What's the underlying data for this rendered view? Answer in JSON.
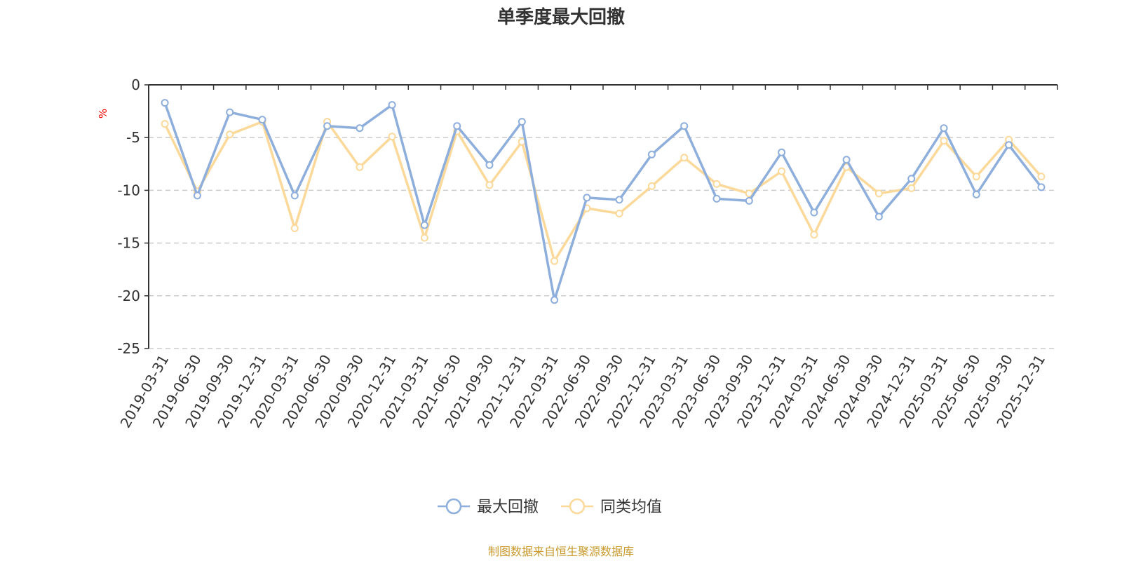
{
  "chart_data": {
    "type": "line",
    "title": "单季度最大回撤",
    "ylabel": "%",
    "ylim": [
      -25,
      0
    ],
    "yticks": [
      0,
      -5,
      -10,
      -15,
      -20,
      -25
    ],
    "grid": "horizontal dashed",
    "legend_position": "bottom-center",
    "categories": [
      "2019-03-31",
      "2019-06-30",
      "2019-09-30",
      "2019-12-31",
      "2020-03-31",
      "2020-06-30",
      "2020-09-30",
      "2020-12-31",
      "2021-03-31",
      "2021-06-30",
      "2021-09-30",
      "2021-12-31",
      "2022-03-31",
      "2022-06-30",
      "2022-09-30",
      "2022-12-31",
      "2023-03-31",
      "2023-06-30",
      "2023-09-30",
      "2023-12-31",
      "2024-03-31",
      "2024-06-30",
      "2024-09-30",
      "2024-12-31",
      "2025-03-31",
      "2025-06-30",
      "2025-09-30",
      "2025-12-31"
    ],
    "series": [
      {
        "name": "最大回撤",
        "color": "#8eaedc",
        "values": [
          -1.7,
          -10.5,
          -2.6,
          -3.3,
          -10.5,
          -3.9,
          -4.1,
          -1.9,
          -13.3,
          -3.9,
          -7.6,
          -3.5,
          -20.4,
          -10.7,
          -10.9,
          -6.6,
          -3.9,
          -10.8,
          -11.0,
          -6.4,
          -12.1,
          -7.1,
          -12.5,
          -8.9,
          -4.1,
          -10.4,
          -5.7,
          -9.7
        ]
      },
      {
        "name": "同类均值",
        "color": "#fbd99a",
        "values": [
          -3.7,
          -10.1,
          -4.7,
          -3.5,
          -13.6,
          -3.5,
          -7.8,
          -4.9,
          -14.5,
          -4.4,
          -9.5,
          -5.4,
          -16.7,
          -11.7,
          -12.2,
          -9.6,
          -6.9,
          -9.4,
          -10.3,
          -8.2,
          -14.2,
          -7.8,
          -10.3,
          -9.8,
          -5.3,
          -8.7,
          -5.2,
          -8.7
        ]
      }
    ]
  },
  "source": "制图数据来自恒生聚源数据库"
}
